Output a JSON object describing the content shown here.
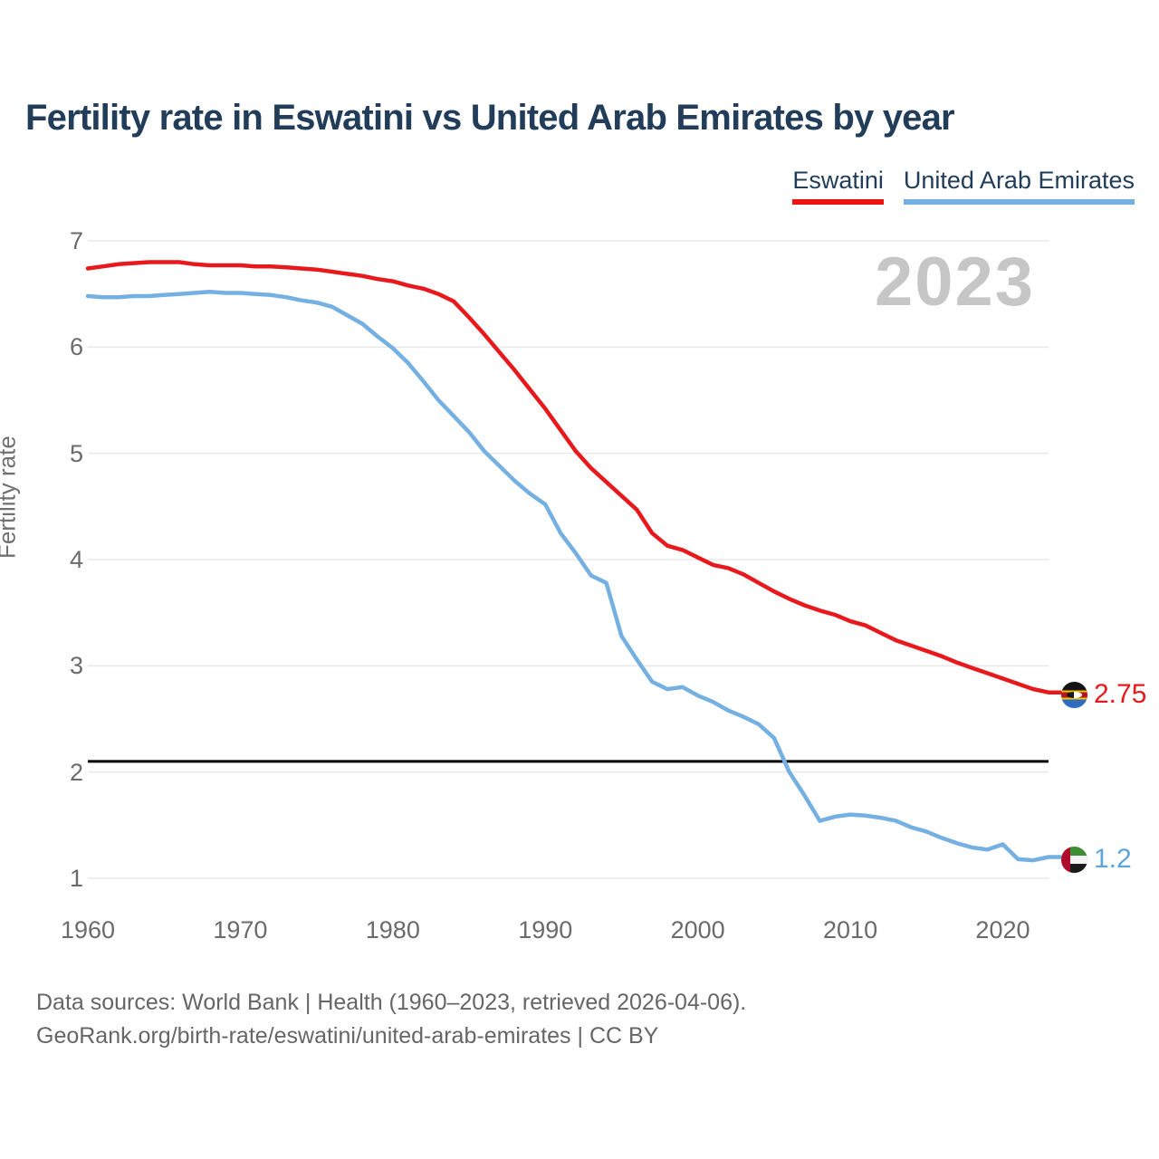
{
  "title": "Fertility rate in Eswatini vs United Arab Emirates by year",
  "legend": [
    {
      "label": "Eswatini",
      "color": "#ec1313"
    },
    {
      "label": "United Arab Emirates",
      "color": "#74b0e2"
    }
  ],
  "annotation_year": "2023",
  "end_labels": [
    {
      "series": "Eswatini",
      "value": "2.75",
      "color": "#e8191c",
      "flag": "eswatini-flag"
    },
    {
      "series": "United Arab Emirates",
      "value": "1.2",
      "color": "#5ea4dd",
      "flag": "uae-flag"
    }
  ],
  "footer": {
    "line1": "Data sources: World Bank | Health (1960–2023, retrieved 2026-04-06).",
    "line2": "GeoRank.org/birth-rate/eswatini/united-arab-emirates | CC BY"
  },
  "chart_data": {
    "type": "line",
    "title": "Fertility rate in Eswatini vs United Arab Emirates by year",
    "xlabel": "",
    "ylabel": "Fertility rate",
    "ylim": [
      0.74,
      7.0
    ],
    "xlim": [
      1960,
      2023
    ],
    "x_ticks": [
      1960,
      1970,
      1980,
      1990,
      2000,
      2010,
      2020
    ],
    "y_ticks": [
      7,
      6,
      5,
      4,
      3,
      2,
      1
    ],
    "grid": true,
    "legend_position": "top-right",
    "replacement_line": 2.1,
    "replacement_line_color": "#000000",
    "gridline_color": "#e9e9e9",
    "years": [
      1960,
      1961,
      1962,
      1963,
      1964,
      1965,
      1966,
      1967,
      1968,
      1969,
      1970,
      1971,
      1972,
      1973,
      1974,
      1975,
      1976,
      1977,
      1978,
      1979,
      1980,
      1981,
      1982,
      1983,
      1984,
      1985,
      1986,
      1987,
      1988,
      1989,
      1990,
      1991,
      1992,
      1993,
      1994,
      1995,
      1996,
      1997,
      1998,
      1999,
      2000,
      2001,
      2002,
      2003,
      2004,
      2005,
      2006,
      2007,
      2008,
      2009,
      2010,
      2011,
      2012,
      2013,
      2014,
      2015,
      2016,
      2017,
      2018,
      2019,
      2020,
      2021,
      2022,
      2023
    ],
    "series": [
      {
        "name": "Eswatini",
        "color": "#e8191c",
        "end_value": 2.75,
        "values": [
          6.74,
          6.76,
          6.78,
          6.79,
          6.8,
          6.8,
          6.8,
          6.78,
          6.77,
          6.77,
          6.77,
          6.76,
          6.76,
          6.75,
          6.74,
          6.73,
          6.71,
          6.69,
          6.67,
          6.64,
          6.62,
          6.58,
          6.55,
          6.5,
          6.43,
          6.28,
          6.12,
          5.95,
          5.78,
          5.6,
          5.42,
          5.22,
          5.02,
          4.86,
          4.73,
          4.6,
          4.47,
          4.25,
          4.13,
          4.09,
          4.02,
          3.95,
          3.92,
          3.86,
          3.78,
          3.7,
          3.63,
          3.57,
          3.52,
          3.48,
          3.42,
          3.38,
          3.31,
          3.24,
          3.19,
          3.14,
          3.09,
          3.03,
          2.98,
          2.93,
          2.88,
          2.83,
          2.78,
          2.75
        ]
      },
      {
        "name": "United Arab Emirates",
        "color": "#74b0e2",
        "end_value": 1.2,
        "values": [
          6.48,
          6.47,
          6.47,
          6.48,
          6.48,
          6.49,
          6.5,
          6.51,
          6.52,
          6.51,
          6.51,
          6.5,
          6.49,
          6.47,
          6.44,
          6.42,
          6.38,
          6.3,
          6.22,
          6.1,
          5.99,
          5.85,
          5.68,
          5.5,
          5.35,
          5.2,
          5.02,
          4.88,
          4.74,
          4.62,
          4.52,
          4.25,
          4.06,
          3.85,
          3.78,
          3.28,
          3.06,
          2.85,
          2.78,
          2.8,
          2.72,
          2.66,
          2.58,
          2.52,
          2.45,
          2.32,
          2.0,
          1.78,
          1.54,
          1.58,
          1.6,
          1.59,
          1.57,
          1.54,
          1.48,
          1.44,
          1.38,
          1.33,
          1.29,
          1.27,
          1.32,
          1.18,
          1.17,
          1.2
        ]
      }
    ]
  }
}
